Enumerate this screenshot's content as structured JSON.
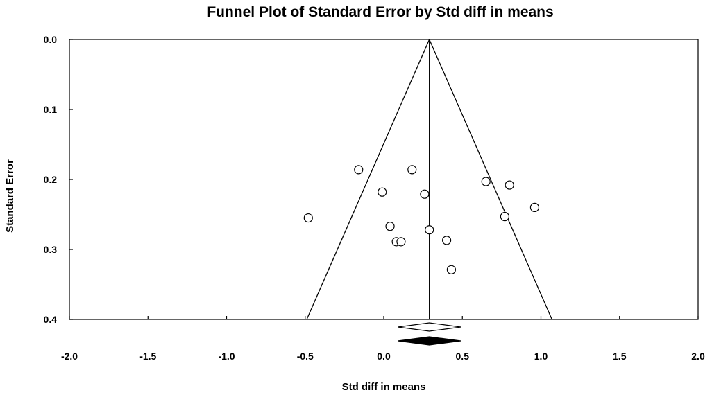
{
  "chart_data": {
    "type": "scatter",
    "title": "Funnel Plot of Standard Error by Std diff in means",
    "xlabel": "Std diff in means",
    "ylabel": "Standard Error",
    "xlim": [
      -2.0,
      2.0
    ],
    "ylim": [
      0.0,
      0.4
    ],
    "y_inverted": true,
    "xticks": [
      "-2.0",
      "-1.5",
      "-1.0",
      "-0.5",
      "0.0",
      "0.5",
      "1.0",
      "1.5",
      "2.0"
    ],
    "yticks": [
      "0.0",
      "0.1",
      "0.2",
      "0.3",
      "0.4"
    ],
    "grid": false,
    "series": [
      {
        "points": [
          {
            "x": -0.48,
            "y": 0.255
          },
          {
            "x": -0.16,
            "y": 0.186
          },
          {
            "x": -0.01,
            "y": 0.218
          },
          {
            "x": 0.04,
            "y": 0.267
          },
          {
            "x": 0.08,
            "y": 0.289
          },
          {
            "x": 0.11,
            "y": 0.289
          },
          {
            "x": 0.18,
            "y": 0.186
          },
          {
            "x": 0.26,
            "y": 0.221
          },
          {
            "x": 0.29,
            "y": 0.272
          },
          {
            "x": 0.4,
            "y": 0.287
          },
          {
            "x": 0.43,
            "y": 0.329
          },
          {
            "x": 0.65,
            "y": 0.203
          },
          {
            "x": 0.77,
            "y": 0.253
          },
          {
            "x": 0.8,
            "y": 0.208
          },
          {
            "x": 0.96,
            "y": 0.24
          }
        ]
      }
    ],
    "summary_effect": 0.29,
    "funnel": {
      "apex_x": 0.29,
      "base_y": 0.4,
      "left_x": -0.49,
      "right_x": 1.07
    },
    "diamonds": [
      {
        "center": 0.29,
        "lower": 0.09,
        "upper": 0.49,
        "fill": "#ffffff"
      },
      {
        "center": 0.29,
        "lower": 0.09,
        "upper": 0.49,
        "fill": "#000000"
      }
    ]
  }
}
